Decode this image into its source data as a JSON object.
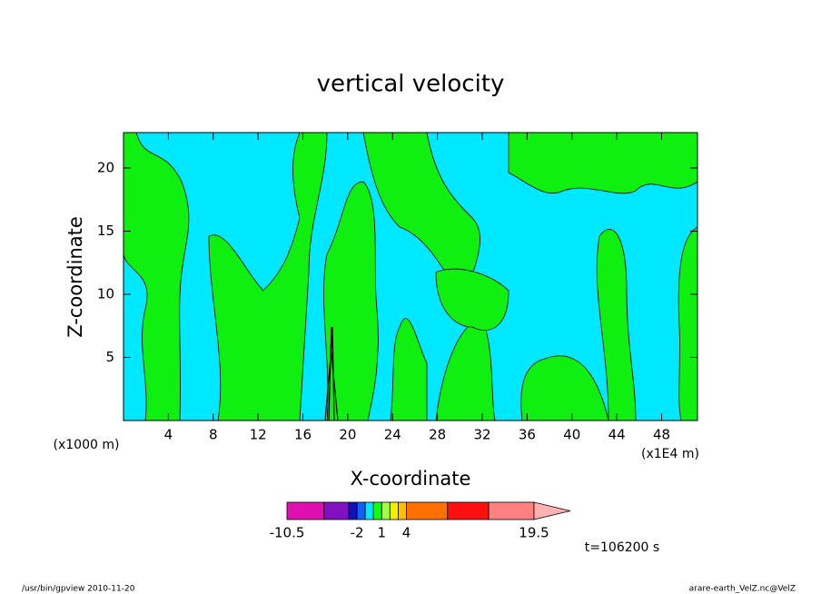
{
  "chart_data": {
    "type": "contour",
    "title": "vertical velocity",
    "x_label": "X-coordinate",
    "y_label": "Z-coordinate",
    "x_unit_left": "(x1000 m)",
    "x_unit_right": "(x1E4 m)",
    "xlim": [
      0,
      51.2
    ],
    "xticks": [
      4,
      8,
      12,
      16,
      20,
      24,
      28,
      32,
      36,
      40,
      44,
      48
    ],
    "ylim": [
      0,
      22.8
    ],
    "yticks": [
      5,
      10,
      15,
      20
    ],
    "colorbar": {
      "bounds": [
        -10.5,
        -6,
        -3,
        -2,
        -1,
        0,
        1,
        2,
        3,
        4,
        9,
        14,
        19.5
      ],
      "colors": [
        "#e010b0",
        "#8010c0",
        "#1010c0",
        "#1060ff",
        "#00e8ff",
        "#10ff10",
        "#a0ff40",
        "#f0f000",
        "#ffc000",
        "#ff7000",
        "#ff1010",
        "#ff8080"
      ],
      "extend_color": "#ffb0b0",
      "ticks": [
        -10.5,
        -2,
        1,
        4,
        19.5
      ]
    },
    "time_label": "t=106200 s",
    "footer_left": "/usr/bin/gpview   2010-11-20",
    "footer_right": "arare-earth_VelZ.nc@VelZ"
  }
}
